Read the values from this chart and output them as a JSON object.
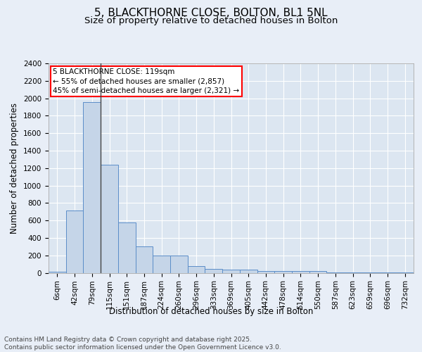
{
  "title": "5, BLACKTHORNE CLOSE, BOLTON, BL1 5NL",
  "subtitle": "Size of property relative to detached houses in Bolton",
  "xlabel": "Distribution of detached houses by size in Bolton",
  "ylabel": "Number of detached properties",
  "categories": [
    "6sqm",
    "42sqm",
    "79sqm",
    "115sqm",
    "151sqm",
    "187sqm",
    "224sqm",
    "260sqm",
    "296sqm",
    "333sqm",
    "369sqm",
    "405sqm",
    "442sqm",
    "478sqm",
    "514sqm",
    "550sqm",
    "587sqm",
    "623sqm",
    "659sqm",
    "696sqm",
    "732sqm"
  ],
  "values": [
    15,
    710,
    1960,
    1240,
    575,
    305,
    200,
    200,
    80,
    48,
    35,
    35,
    20,
    20,
    20,
    20,
    5,
    5,
    5,
    3,
    3
  ],
  "bar_color": "#c5d5e8",
  "bar_edge_color": "#5b8dc8",
  "background_color": "#dce6f1",
  "grid_color": "#ffffff",
  "annotation_text": "5 BLACKTHORNE CLOSE: 119sqm\n← 55% of detached houses are smaller (2,857)\n45% of semi-detached houses are larger (2,321) →",
  "ylim": [
    0,
    2400
  ],
  "yticks": [
    0,
    200,
    400,
    600,
    800,
    1000,
    1200,
    1400,
    1600,
    1800,
    2000,
    2200,
    2400
  ],
  "footer": "Contains HM Land Registry data © Crown copyright and database right 2025.\nContains public sector information licensed under the Open Government Licence v3.0.",
  "title_fontsize": 11,
  "subtitle_fontsize": 9.5,
  "axis_label_fontsize": 8.5,
  "tick_fontsize": 7.5,
  "annotation_fontsize": 7.5,
  "footer_fontsize": 6.5,
  "fig_bg_color": "#e8eef7"
}
